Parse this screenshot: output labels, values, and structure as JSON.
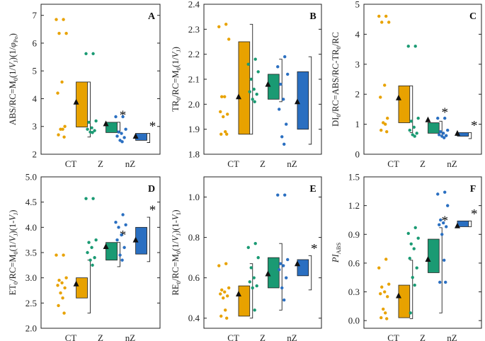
{
  "figure_title": "Multi-panel box plots of JIP-test parameters for CT, Z and nZ treatments",
  "colors": {
    "CT": "#e8a200",
    "Z": "#1a9a73",
    "nZ": "#2a6fc1",
    "axis": "#222222",
    "mean_marker": "#111111"
  },
  "chart_data": [
    {
      "type": "box",
      "panel": "A",
      "ylabel_parts": [
        "ABS/RC=M",
        "0",
        "(1/",
        "V",
        "J",
        ")(1/",
        "φ",
        "Po",
        ")"
      ],
      "ylim": [
        2,
        7.4
      ],
      "yticks": [
        2,
        3,
        4,
        5,
        6,
        7
      ],
      "categories": [
        "CT",
        "Z",
        "nZ"
      ],
      "groups": [
        {
          "name": "CT",
          "points": [
            6.85,
            6.85,
            6.35,
            6.35,
            4.6,
            4.2,
            3.0,
            2.9,
            2.9,
            2.7,
            2.62
          ],
          "box_q1": 2.98,
          "box_q3": 4.6,
          "whisker_low": 2.62,
          "whisker_high": 4.6,
          "mean": 3.88,
          "signif": ""
        },
        {
          "name": "Z",
          "points": [
            5.62,
            5.62,
            3.2,
            3.15,
            2.95,
            2.9,
            2.85,
            2.8,
            2.78
          ],
          "box_q1": 2.78,
          "box_q3": 3.15,
          "whisker_low": 2.78,
          "whisker_high": 3.15,
          "mean": 3.1,
          "signif": "*"
        },
        {
          "name": "nZ",
          "points": [
            3.35,
            3.35,
            2.9,
            2.8,
            2.75,
            2.65,
            2.6,
            2.5,
            2.45
          ],
          "box_q1": 2.5,
          "box_q3": 2.75,
          "whisker_low": 2.42,
          "whisker_high": 2.75,
          "mean": 2.65,
          "signif": "*"
        }
      ]
    },
    {
      "type": "box",
      "panel": "B",
      "ylabel_parts": [
        "TR",
        "0",
        "/RC=M",
        "0",
        "(1/",
        "V",
        "J",
        ")"
      ],
      "ylim": [
        1.8,
        2.4
      ],
      "yticks": [
        1.8,
        1.9,
        2.0,
        2.1,
        2.2,
        2.3,
        2.4
      ],
      "yticklabels": [
        "1.8",
        "1.9",
        "2.0",
        "2.1",
        "2.2",
        "2.3",
        "2.4"
      ],
      "categories": [
        "CT",
        "Z",
        "nZ"
      ],
      "groups": [
        {
          "name": "CT",
          "points": [
            2.32,
            2.31,
            2.26,
            2.03,
            2.03,
            1.97,
            1.96,
            1.95,
            1.89,
            1.88,
            1.88
          ],
          "box_q1": 1.88,
          "box_q3": 2.25,
          "whisker_low": 1.88,
          "whisker_high": 2.32,
          "mean": 2.03,
          "signif": ""
        },
        {
          "name": "Z",
          "points": [
            2.18,
            2.16,
            2.13,
            2.1,
            2.06,
            2.05,
            2.04,
            2.02,
            2.01
          ],
          "box_q1": 2.02,
          "box_q3": 2.12,
          "whisker_low": 2.01,
          "whisker_high": 2.18,
          "mean": 2.08,
          "signif": ""
        },
        {
          "name": "nZ",
          "points": [
            2.19,
            2.15,
            2.12,
            2.08,
            2.02,
            1.98,
            1.92,
            1.87,
            1.84
          ],
          "box_q1": 1.9,
          "box_q3": 2.13,
          "whisker_low": 1.84,
          "whisker_high": 2.19,
          "mean": 2.01,
          "signif": ""
        }
      ]
    },
    {
      "type": "box",
      "panel": "C",
      "ylabel_parts": [
        "DI",
        "0",
        "/RC=ABS/RC-TR",
        "0",
        "/RC"
      ],
      "ylim": [
        0,
        5
      ],
      "yticks": [
        0,
        1,
        2,
        3,
        4,
        5
      ],
      "categories": [
        "CT",
        "Z",
        "nZ"
      ],
      "groups": [
        {
          "name": "CT",
          "points": [
            4.6,
            4.6,
            4.4,
            4.4,
            2.3,
            1.9,
            1.2,
            1.05,
            1.0,
            0.8,
            0.75
          ],
          "box_q1": 1.05,
          "box_q3": 2.28,
          "whisker_low": 0.72,
          "whisker_high": 2.28,
          "mean": 1.88,
          "signif": ""
        },
        {
          "name": "Z",
          "points": [
            3.6,
            3.6,
            1.2,
            1.1,
            0.9,
            0.8,
            0.7,
            0.65,
            0.6
          ],
          "box_q1": 0.7,
          "box_q3": 1.05,
          "whisker_low": 0.62,
          "whisker_high": 1.1,
          "mean": 1.15,
          "signif": "*"
        },
        {
          "name": "nZ",
          "points": [
            1.2,
            1.2,
            0.8,
            0.75,
            0.7,
            0.65,
            0.62,
            0.6,
            0.55
          ],
          "box_q1": 0.6,
          "box_q3": 0.72,
          "whisker_low": 0.52,
          "whisker_high": 0.72,
          "mean": 0.7,
          "signif": "*"
        }
      ]
    },
    {
      "type": "box",
      "panel": "D",
      "ylabel_parts": [
        "ET",
        "0",
        "/RC=M",
        "0",
        "(1/",
        "V",
        "J",
        ")(1-",
        "V",
        "J",
        ")"
      ],
      "ylim": [
        2.0,
        5.0
      ],
      "yticks": [
        2.0,
        2.5,
        3.0,
        3.5,
        4.0,
        4.5,
        5.0
      ],
      "yticklabels": [
        "2.0",
        "2.5",
        "3.0",
        "3.5",
        "4.0",
        "4.5",
        "5.0"
      ],
      "categories": [
        "CT",
        "Z",
        "nZ"
      ],
      "groups": [
        {
          "name": "CT",
          "points": [
            3.45,
            3.45,
            3.0,
            2.95,
            2.9,
            2.85,
            2.8,
            2.7,
            2.6,
            2.45,
            2.3
          ],
          "box_q1": 2.6,
          "box_q3": 3.0,
          "whisker_low": 2.3,
          "whisker_high": 3.35,
          "mean": 2.88,
          "signif": ""
        },
        {
          "name": "Z",
          "points": [
            4.57,
            4.57,
            3.75,
            3.7,
            3.6,
            3.5,
            3.4,
            3.35,
            3.25
          ],
          "box_q1": 3.35,
          "box_q3": 3.7,
          "whisker_low": 3.22,
          "whisker_high": 3.7,
          "mean": 3.62,
          "signif": "*"
        },
        {
          "name": "nZ",
          "points": [
            4.25,
            4.1,
            4.05,
            4.0,
            3.85,
            3.75,
            3.6,
            3.45,
            3.35
          ],
          "box_q1": 3.47,
          "box_q3": 4.0,
          "whisker_low": 3.32,
          "whisker_high": 4.2,
          "mean": 3.75,
          "signif": "*"
        }
      ]
    },
    {
      "type": "box",
      "panel": "E",
      "ylabel_parts": [
        "RE",
        "0",
        "/RC=M",
        "0",
        "(1/",
        "V",
        "J",
        ")(1-",
        "V",
        "I",
        ")"
      ],
      "ylim": [
        0.35,
        1.1
      ],
      "yticks": [
        0.4,
        0.6,
        0.8,
        1.0
      ],
      "yticklabels": [
        "0.4",
        "0.6",
        "0.8",
        "1.0"
      ],
      "categories": [
        "CT",
        "Z",
        "nZ"
      ],
      "groups": [
        {
          "name": "CT",
          "points": [
            0.67,
            0.66,
            0.55,
            0.54,
            0.53,
            0.52,
            0.51,
            0.5,
            0.44,
            0.41,
            0.4
          ],
          "box_q1": 0.41,
          "box_q3": 0.56,
          "whisker_low": 0.4,
          "whisker_high": 0.67,
          "mean": 0.52,
          "signif": ""
        },
        {
          "name": "Z",
          "points": [
            0.77,
            0.75,
            0.7,
            0.65,
            0.6,
            0.58,
            0.56,
            0.55,
            0.44
          ],
          "box_q1": 0.55,
          "box_q3": 0.7,
          "whisker_low": 0.44,
          "whisker_high": 0.77,
          "mean": 0.62,
          "signif": ""
        },
        {
          "name": "nZ",
          "points": [
            1.01,
            1.01,
            0.69,
            0.67,
            0.66,
            0.64,
            0.6,
            0.55,
            0.49
          ],
          "box_q1": 0.61,
          "box_q3": 0.69,
          "whisker_low": 0.54,
          "whisker_high": 0.71,
          "mean": 0.67,
          "signif": "*"
        }
      ]
    },
    {
      "type": "box",
      "panel": "F",
      "ylabel_parts": [
        "PI",
        "ABS"
      ],
      "ylim": [
        -0.08,
        1.5
      ],
      "yticks": [
        0.0,
        0.3,
        0.6,
        0.9,
        1.2,
        1.5
      ],
      "yticklabels": [
        "0.0",
        "0.3",
        "0.6",
        "0.9",
        "1.2",
        "1.5"
      ],
      "categories": [
        "CT",
        "Z",
        "nZ"
      ],
      "groups": [
        {
          "name": "CT",
          "points": [
            0.64,
            0.55,
            0.38,
            0.35,
            0.3,
            0.28,
            0.25,
            0.12,
            0.08,
            0.03,
            0.02
          ],
          "box_q1": 0.03,
          "box_q3": 0.37,
          "whisker_low": 0.02,
          "whisker_high": 0.63,
          "mean": 0.26,
          "signif": ""
        },
        {
          "name": "Z",
          "points": [
            0.97,
            0.91,
            0.86,
            0.8,
            0.75,
            0.65,
            0.55,
            0.45,
            0.37,
            0.08
          ],
          "box_q1": 0.5,
          "box_q3": 0.85,
          "whisker_low": 0.08,
          "whisker_high": 0.97,
          "mean": 0.64,
          "signif": "*"
        },
        {
          "name": "nZ",
          "points": [
            1.34,
            1.32,
            1.2,
            1.05,
            1.02,
            1.0,
            0.98,
            0.9,
            0.63,
            0.4,
            0.4
          ],
          "box_q1": 0.98,
          "box_q3": 1.04,
          "whisker_low": 0.98,
          "whisker_high": 1.04,
          "mean": 0.99,
          "signif": "*"
        }
      ]
    }
  ]
}
